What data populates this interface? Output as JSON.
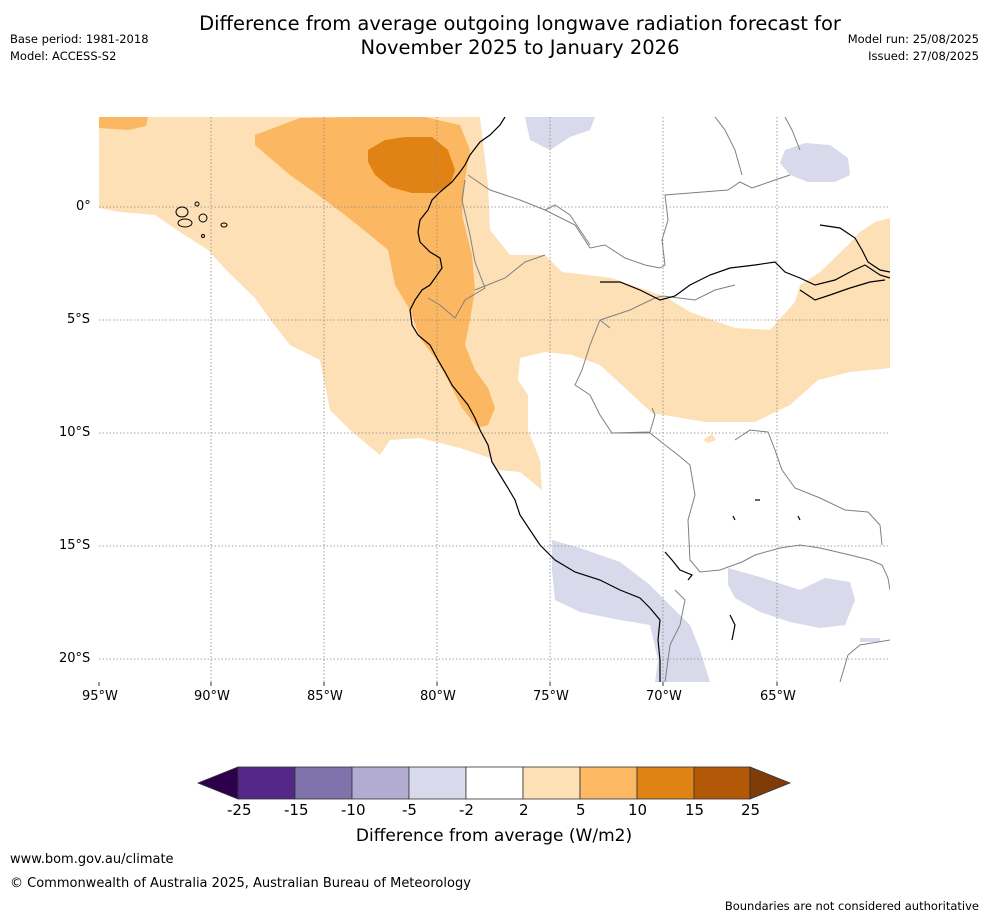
{
  "header": {
    "title_line1": "Difference from average outgoing longwave radiation forecast for",
    "title_line2": "November 2025 to January 2026",
    "base_period": "Base period: 1981-2018",
    "model": "Model: ACCESS-S2",
    "model_run": "Model run: 25/08/2025",
    "issued": "Issued: 27/08/2025"
  },
  "map": {
    "longitude_labels": [
      "95°W",
      "90°W",
      "85°W",
      "80°W",
      "75°W",
      "70°W",
      "65°W"
    ],
    "latitude_labels": [
      "0°",
      "5°S",
      "10°S",
      "15°S",
      "20°S"
    ],
    "gridlines": true,
    "colors": {
      "coast": "#000000",
      "borders": "#808080",
      "pos_2_5": "#fde0b6",
      "pos_5_10": "#fbb761",
      "pos_10_15": "#e08214",
      "neg_2_5": "#d8d9ea"
    }
  },
  "colorbar": {
    "label": "Difference from average (W/m2)",
    "ticks": [
      "-25",
      "-15",
      "-10",
      "-5",
      "-2",
      "2",
      "5",
      "10",
      "15",
      "25"
    ],
    "colors": [
      "#2d004b",
      "#542788",
      "#8073ac",
      "#b2abd2",
      "#d8daeb",
      "#ffffff",
      "#fee0b6",
      "#fdb863",
      "#e08214",
      "#b35806",
      "#7f3b08"
    ]
  },
  "footer": {
    "website": "www.bom.gov.au/climate",
    "copyright": "© Commonwealth of Australia 2025, Australian Bureau of Meteorology",
    "disclaimer": "Boundaries are not considered authoritative"
  }
}
